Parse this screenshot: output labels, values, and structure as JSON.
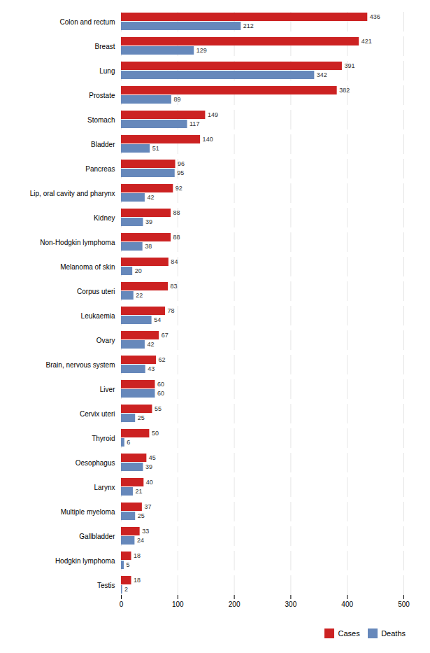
{
  "chart_data": {
    "type": "bar",
    "orientation": "horizontal",
    "categories": [
      "Colon and rectum",
      "Breast",
      "Lung",
      "Prostate",
      "Stomach",
      "Bladder",
      "Pancreas",
      "Lip, oral cavity and pharynx",
      "Kidney",
      "Non-Hodgkin lymphoma",
      "Melanoma of skin",
      "Corpus uteri",
      "Leukaemia",
      "Ovary",
      "Brain, nervous system",
      "Liver",
      "Cervix uteri",
      "Thyroid",
      "Oesophagus",
      "Larynx",
      "Multiple myeloma",
      "Gallbladder",
      "Hodgkin lymphoma",
      "Testis"
    ],
    "series": [
      {
        "name": "Cases",
        "color": "#cc2222",
        "values": [
          436,
          421,
          391,
          382,
          149,
          140,
          96,
          92,
          88,
          88,
          84,
          83,
          78,
          67,
          62,
          60,
          55,
          50,
          45,
          40,
          37,
          33,
          18,
          18
        ]
      },
      {
        "name": "Deaths",
        "color": "#6688bb",
        "values": [
          212,
          129,
          342,
          89,
          117,
          51,
          95,
          42,
          39,
          38,
          20,
          22,
          54,
          42,
          43,
          60,
          25,
          6,
          39,
          21,
          25,
          24,
          5,
          2
        ]
      }
    ],
    "xlim": [
      0,
      500
    ],
    "xticks": [
      0,
      100,
      200,
      300,
      400,
      500
    ],
    "grid": true,
    "legend": "lower right",
    "data_labels": true
  }
}
